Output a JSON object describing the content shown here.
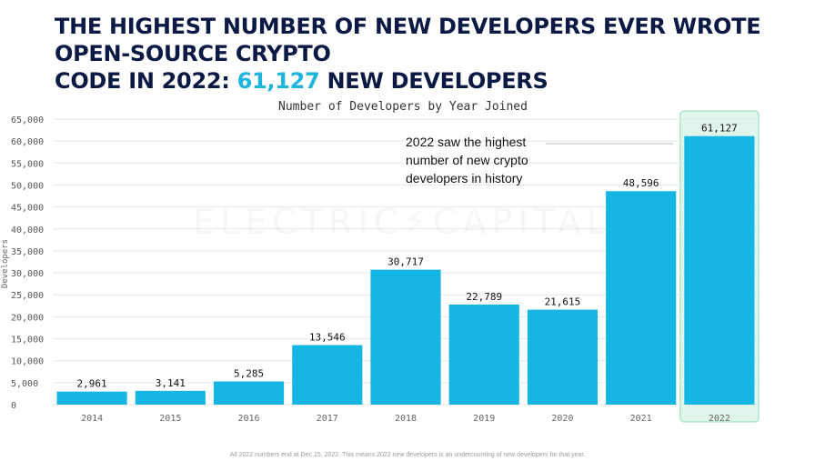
{
  "headline": {
    "line1": "THE HIGHEST NUMBER OF NEW DEVELOPERS EVER WROTE OPEN-SOURCE CRYPTO",
    "line2_prefix": "CODE IN 2022: ",
    "line2_accent": "61,127",
    "line2_suffix": " NEW DEVELOPERS",
    "accent_color": "#1fb4dc",
    "text_color": "#0b1a45"
  },
  "watermark": "ELECTRIC⚡CAPITAL",
  "annotation": "2022 saw the highest number of new crypto developers in history",
  "footnote": "All 2022 numbers end at Dec 15, 2022. This means 2022 new developers is an undercounting of new developers for that year.",
  "chart_data": {
    "type": "bar",
    "title": "Number of Developers by Year Joined",
    "xlabel": "",
    "ylabel": "Developers",
    "categories": [
      "2014",
      "2015",
      "2016",
      "2017",
      "2018",
      "2019",
      "2020",
      "2021",
      "2022"
    ],
    "values": [
      2961,
      3141,
      5285,
      13546,
      30717,
      22789,
      21615,
      48596,
      61127
    ],
    "value_labels": [
      "2,961",
      "3,141",
      "5,285",
      "13,546",
      "30,717",
      "22,789",
      "21,615",
      "48,596",
      "61,127"
    ],
    "ylim": [
      0,
      65000
    ],
    "yticks": [
      0,
      5000,
      10000,
      15000,
      20000,
      25000,
      30000,
      35000,
      40000,
      45000,
      50000,
      55000,
      60000,
      65000
    ],
    "ytick_labels": [
      "0",
      "5,000",
      "10,000",
      "15,000",
      "20,000",
      "25,000",
      "30,000",
      "35,000",
      "40,000",
      "45,000",
      "50,000",
      "55,000",
      "60,000",
      "65,000"
    ],
    "highlight_category": "2022",
    "grid": "horizontal",
    "bar_color": "#16b6e4",
    "highlight_fill": "#e0f6ec",
    "highlight_stroke": "#8fdcb6"
  }
}
